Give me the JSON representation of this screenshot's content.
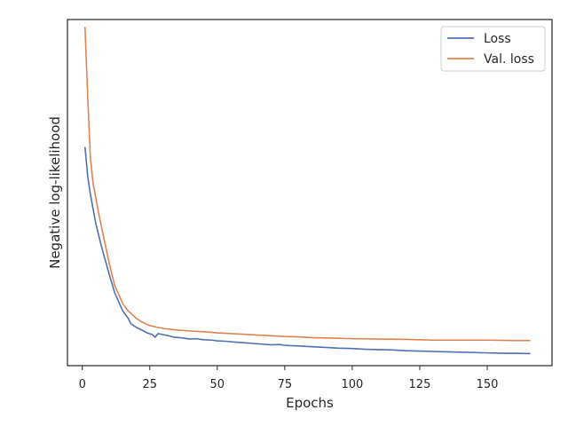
{
  "chart_data": {
    "type": "line",
    "title": "",
    "xlabel": "Epochs",
    "ylabel": "Negative log-likelihood",
    "xlim": [
      -5.5,
      174
    ],
    "ylim": [
      0.05,
      1.0
    ],
    "x_ticks": [
      0,
      25,
      50,
      75,
      100,
      125,
      150
    ],
    "y_ticks_shown": false,
    "grid": false,
    "legend_position": "top-right",
    "series": [
      {
        "name": "Loss",
        "color": "#4c72b0",
        "x": [
          1,
          2,
          3,
          5,
          7,
          10,
          12,
          15,
          17,
          18,
          20,
          22,
          24,
          26,
          27,
          28,
          30,
          32,
          34,
          36,
          38,
          40,
          42,
          45,
          48,
          50,
          53,
          56,
          60,
          65,
          70,
          73,
          75,
          77,
          80,
          85,
          90,
          95,
          100,
          105,
          110,
          115,
          120,
          125,
          130,
          135,
          140,
          145,
          150,
          155,
          160,
          166
        ],
        "y": [
          0.65,
          0.57,
          0.52,
          0.44,
          0.38,
          0.3,
          0.25,
          0.2,
          0.18,
          0.165,
          0.155,
          0.148,
          0.14,
          0.135,
          0.128,
          0.138,
          0.135,
          0.132,
          0.128,
          0.127,
          0.125,
          0.123,
          0.124,
          0.121,
          0.12,
          0.118,
          0.117,
          0.115,
          0.113,
          0.11,
          0.107,
          0.108,
          0.106,
          0.105,
          0.104,
          0.102,
          0.1,
          0.098,
          0.097,
          0.095,
          0.094,
          0.093,
          0.091,
          0.09,
          0.089,
          0.088,
          0.087,
          0.086,
          0.085,
          0.084,
          0.084,
          0.083
        ]
      },
      {
        "name": "Val. loss",
        "color": "#dd8452",
        "x": [
          1,
          2,
          3,
          4,
          6,
          8,
          10,
          12,
          15,
          17,
          20,
          22,
          25,
          28,
          30,
          35,
          40,
          45,
          50,
          55,
          60,
          65,
          70,
          75,
          80,
          85,
          90,
          95,
          100,
          110,
          120,
          125,
          130,
          140,
          150,
          160,
          166
        ],
        "y": [
          0.98,
          0.79,
          0.62,
          0.55,
          0.47,
          0.4,
          0.33,
          0.27,
          0.22,
          0.2,
          0.18,
          0.17,
          0.16,
          0.155,
          0.152,
          0.148,
          0.145,
          0.143,
          0.14,
          0.138,
          0.136,
          0.134,
          0.132,
          0.13,
          0.129,
          0.127,
          0.126,
          0.125,
          0.124,
          0.123,
          0.122,
          0.121,
          0.12,
          0.12,
          0.12,
          0.119,
          0.119
        ]
      }
    ]
  }
}
